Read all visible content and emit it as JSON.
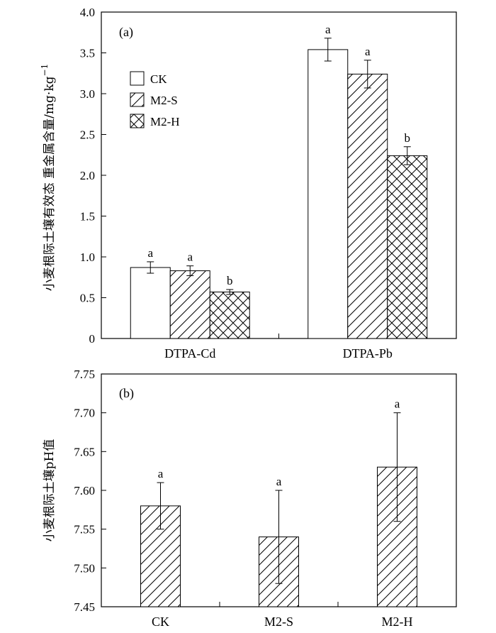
{
  "chart_data": [
    {
      "panel": "(a)",
      "type": "bar",
      "ylabel": "小麦根际土壤有效态 重金属含量/mg·kg",
      "ylabel_sup": "−1",
      "ylim": [
        0,
        4.0
      ],
      "yticks": [
        "0",
        "0.5",
        "1.0",
        "1.5",
        "2.0",
        "2.5",
        "3.0",
        "3.5",
        "4.0"
      ],
      "categories": [
        "DTPA-Cd",
        "DTPA-Pb"
      ],
      "series": [
        {
          "name": "CK",
          "pattern": "none",
          "values": [
            0.87,
            3.54
          ],
          "errors": [
            0.07,
            0.14
          ],
          "labels": [
            "a",
            "a"
          ]
        },
        {
          "name": "M2-S",
          "pattern": "diagonal",
          "values": [
            0.83,
            3.24
          ],
          "errors": [
            0.06,
            0.17
          ],
          "labels": [
            "a",
            "a"
          ]
        },
        {
          "name": "M2-H",
          "pattern": "crosshatch",
          "values": [
            0.57,
            2.24
          ],
          "errors": [
            0.03,
            0.11
          ],
          "labels": [
            "b",
            "b"
          ]
        }
      ],
      "legend_position": "upper-left"
    },
    {
      "panel": "(b)",
      "type": "bar",
      "ylabel": "小麦根际土壤pH值",
      "ylim": [
        7.45,
        7.75
      ],
      "yticks": [
        "7.45",
        "7.50",
        "7.55",
        "7.60",
        "7.65",
        "7.70",
        "7.75"
      ],
      "categories": [
        "CK",
        "M2-S",
        "M2-H"
      ],
      "values": [
        7.58,
        7.54,
        7.63
      ],
      "errors": [
        0.03,
        0.06,
        0.07
      ],
      "labels": [
        "a",
        "a",
        "a"
      ],
      "pattern": "diagonal"
    }
  ]
}
